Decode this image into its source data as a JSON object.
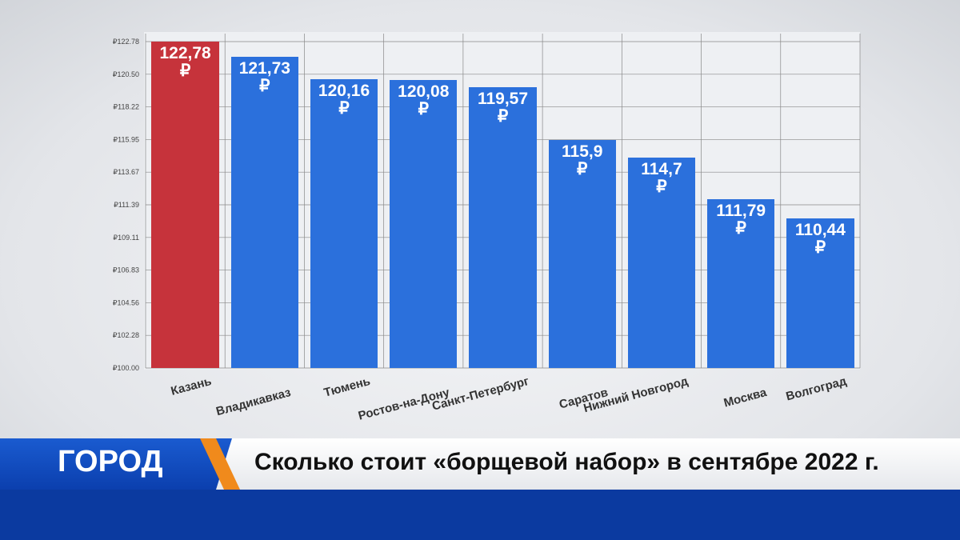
{
  "chart_data": {
    "type": "bar",
    "title": "Сколько стоит «борщевой набор» в сентябре 2022 г.",
    "categories": [
      "Казань",
      "Владикавказ",
      "Тюмень",
      "Ростов-на-Дону",
      "Санкт-Петербург",
      "Саратов",
      "Нижний Новгород",
      "Москва",
      "Волгоград"
    ],
    "values": [
      122.78,
      121.73,
      120.16,
      120.08,
      119.57,
      115.9,
      114.7,
      111.79,
      110.44
    ],
    "value_labels": [
      "122,78\n₽",
      "121,73\n₽",
      "120,16\n₽",
      "120,08\n₽",
      "119,57\n₽",
      "115,9\n₽",
      "114,7\n₽",
      "111,79\n₽",
      "110,44\n₽"
    ],
    "colors": [
      "#c6333b",
      "#2b70dc",
      "#2b70dc",
      "#2b70dc",
      "#2b70dc",
      "#2b70dc",
      "#2b70dc",
      "#2b70dc",
      "#2b70dc"
    ],
    "ylim": [
      100,
      122.78
    ],
    "yticks": [
      {
        "value": 100,
        "label": "₽100.00"
      },
      {
        "value": 102.28,
        "label": "₽102.28"
      },
      {
        "value": 104.56,
        "label": "₽104.56"
      },
      {
        "value": 106.83,
        "label": "₽106.83"
      },
      {
        "value": 109.11,
        "label": "₽109.11"
      },
      {
        "value": 111.39,
        "label": "₽111.39"
      },
      {
        "value": 113.67,
        "label": "₽113.67"
      },
      {
        "value": 115.95,
        "label": "₽115.95"
      },
      {
        "value": 118.22,
        "label": "₽118.22"
      },
      {
        "value": 120.5,
        "label": "₽120.50"
      },
      {
        "value": 122.78,
        "label": "₽122.78"
      }
    ],
    "grid": true
  },
  "banner": {
    "label": "ГОРОД"
  }
}
